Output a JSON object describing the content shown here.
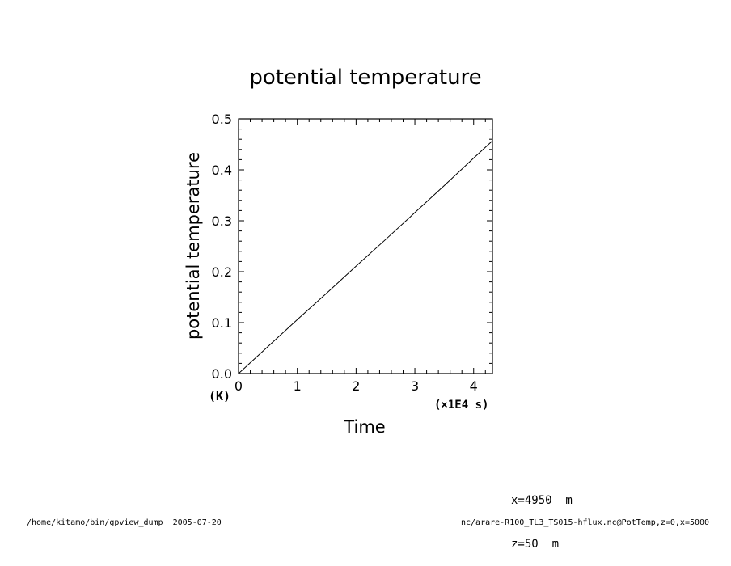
{
  "chart_data": {
    "type": "line",
    "title": "potential temperature",
    "xlabel": "Time",
    "x_unit": "(×1E4 s)",
    "ylabel": "potential temperature",
    "y_unit": "(K)",
    "xlim": [
      0,
      4.32
    ],
    "ylim": [
      0,
      0.5
    ],
    "x_ticks": [
      "0",
      "1",
      "2",
      "3",
      "4"
    ],
    "y_ticks": [
      "0.0",
      "0.1",
      "0.2",
      "0.3",
      "0.4",
      "0.5"
    ],
    "grid": false,
    "series": [
      {
        "x": [
          0,
          0.5,
          1.0,
          1.5,
          2.0,
          2.5,
          3.0,
          3.5,
          4.0,
          4.32
        ],
        "y": [
          0,
          0.053,
          0.106,
          0.158,
          0.211,
          0.263,
          0.316,
          0.369,
          0.423,
          0.457
        ]
      }
    ]
  },
  "info": {
    "x_coord": "x=4950  m",
    "z_coord": "z=50  m"
  },
  "footer": {
    "left": "/home/kitamo/bin/gpview_dump  2005-07-20",
    "right": "nc/arare-R100_TL3_TS015-hflux.nc@PotTemp,z=0,x=5000"
  }
}
